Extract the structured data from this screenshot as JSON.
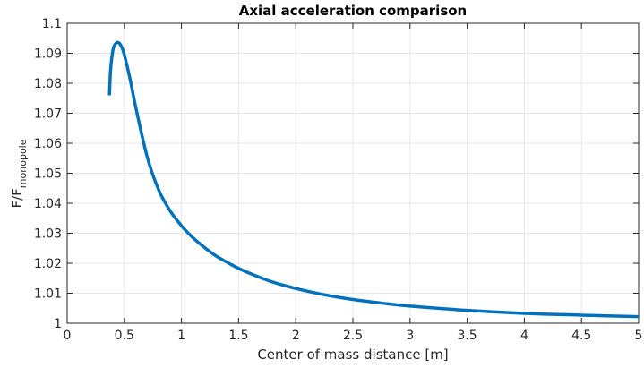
{
  "chart_data": {
    "type": "line",
    "title": "Axial acceleration comparison",
    "xlabel": "Center of mass distance [m]",
    "ylabel_main": "F/F",
    "ylabel_sub": "monopole",
    "xlim": [
      0,
      5
    ],
    "ylim": [
      1,
      1.1
    ],
    "xticks": [
      0,
      0.5,
      1,
      1.5,
      2,
      2.5,
      3,
      3.5,
      4,
      4.5,
      5
    ],
    "xtick_labels": [
      "0",
      "0.5",
      "1",
      "1.5",
      "2",
      "2.5",
      "3",
      "3.5",
      "4",
      "4.5",
      "5"
    ],
    "yticks": [
      1,
      1.01,
      1.02,
      1.03,
      1.04,
      1.05,
      1.06,
      1.07,
      1.08,
      1.09,
      1.1
    ],
    "ytick_labels": [
      "1",
      "1.01",
      "1.02",
      "1.03",
      "1.04",
      "1.05",
      "1.06",
      "1.07",
      "1.08",
      "1.09",
      "1.1"
    ],
    "grid": true,
    "series": [
      {
        "color": "#0072BD",
        "x": [
          0.37,
          0.38,
          0.4,
          0.42,
          0.44,
          0.46,
          0.48,
          0.5,
          0.55,
          0.6,
          0.7,
          0.8,
          0.9,
          1.0,
          1.1,
          1.2,
          1.3,
          1.4,
          1.5,
          1.6,
          1.8,
          2.0,
          2.25,
          2.5,
          2.75,
          3.0,
          3.5,
          4.0,
          4.5,
          5.0
        ],
        "y": [
          1.076,
          1.0845,
          1.091,
          1.093,
          1.0936,
          1.0932,
          1.0918,
          1.0895,
          1.0815,
          1.072,
          1.0555,
          1.0445,
          1.0375,
          1.0325,
          1.0285,
          1.0253,
          1.0225,
          1.0203,
          1.0183,
          1.0166,
          1.0137,
          1.0116,
          1.0095,
          1.0079,
          1.0067,
          1.0057,
          1.0043,
          1.0033,
          1.0027,
          1.0022
        ]
      }
    ]
  }
}
